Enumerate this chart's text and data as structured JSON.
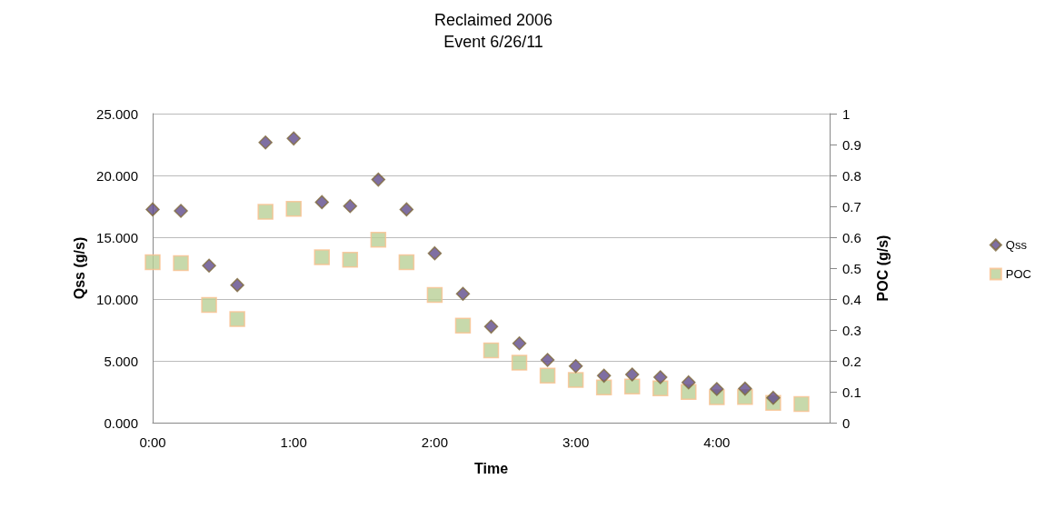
{
  "chart_data": {
    "type": "scatter",
    "title": "Reclaimed 2006",
    "subtitle": "Event 6/26/11",
    "xlabel": "Time",
    "ylabel": "Qss (g/s)",
    "y2label": "POC (g/s)",
    "xlim": [
      0,
      4.8
    ],
    "xticks": [
      {
        "value": 0,
        "label": "0:00"
      },
      {
        "value": 1,
        "label": "1:00"
      },
      {
        "value": 2,
        "label": "2:00"
      },
      {
        "value": 3,
        "label": "3:00"
      },
      {
        "value": 4,
        "label": "4:00"
      }
    ],
    "ylim": [
      0,
      25
    ],
    "yticks": [
      {
        "value": 0,
        "label": "0.000"
      },
      {
        "value": 5,
        "label": "5.000"
      },
      {
        "value": 10,
        "label": "10.000"
      },
      {
        "value": 15,
        "label": "15.000"
      },
      {
        "value": 20,
        "label": "20.000"
      },
      {
        "value": 25,
        "label": "25.000"
      }
    ],
    "y2lim": [
      0,
      1
    ],
    "y2ticks": [
      0,
      0.1,
      0.2,
      0.3,
      0.4,
      0.5,
      0.6,
      0.7,
      0.8,
      0.9,
      1
    ],
    "grid": "y",
    "legend": "right",
    "series": [
      {
        "name": "Qss",
        "color": "#5f4b8b",
        "marker": "diamond",
        "x": [
          0,
          0.2,
          0.4,
          0.6,
          0.8,
          1.0,
          1.2,
          1.4,
          1.6,
          1.8,
          2.0,
          2.2,
          2.4,
          2.6,
          2.8,
          3.0,
          3.2,
          3.4,
          3.6,
          3.8,
          4.0,
          4.2,
          4.4
        ],
        "values": [
          17.25,
          17.13,
          12.7,
          11.13,
          22.67,
          22.99,
          17.84,
          17.52,
          19.66,
          17.25,
          13.7,
          10.42,
          7.77,
          6.42,
          5.07,
          4.58,
          3.8,
          3.9,
          3.68,
          3.26,
          2.72,
          2.75,
          2.01
        ]
      },
      {
        "name": "POC",
        "color": "#b9cf96",
        "marker": "square",
        "axis": "y2",
        "x": [
          0,
          0.2,
          0.4,
          0.6,
          0.8,
          1.0,
          1.2,
          1.4,
          1.6,
          1.8,
          2.0,
          2.2,
          2.4,
          2.6,
          2.8,
          3.0,
          3.2,
          3.4,
          3.6,
          3.8,
          4.0,
          4.2,
          4.4,
          4.6
        ],
        "values": [
          0.519,
          0.516,
          0.381,
          0.335,
          0.682,
          0.692,
          0.535,
          0.527,
          0.592,
          0.519,
          0.413,
          0.314,
          0.234,
          0.194,
          0.152,
          0.138,
          0.114,
          0.117,
          0.111,
          0.099,
          0.082,
          0.083,
          0.064,
          0.06
        ]
      }
    ]
  }
}
